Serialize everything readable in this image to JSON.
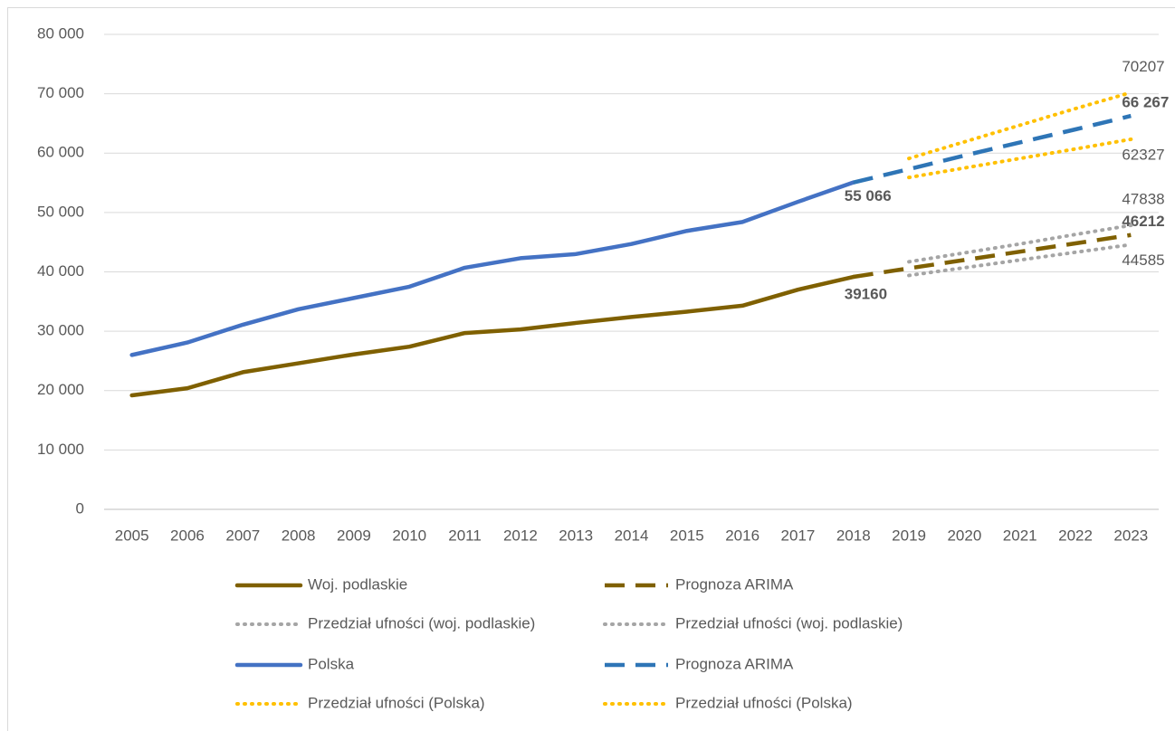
{
  "chart_data": {
    "type": "line",
    "categories": [
      "2005",
      "2006",
      "2007",
      "2008",
      "2009",
      "2010",
      "2011",
      "2012",
      "2013",
      "2014",
      "2015",
      "2016",
      "2017",
      "2018",
      "2019",
      "2020",
      "2021",
      "2022",
      "2023"
    ],
    "series": [
      {
        "name": "Woj. podlaskie",
        "color": "#7f6000",
        "style": "solid",
        "values": [
          19200,
          20400,
          23100,
          24600,
          26100,
          27400,
          29700,
          30300,
          31400,
          32400,
          33300,
          34300,
          37000,
          39160,
          null,
          null,
          null,
          null,
          null
        ],
        "value_labels": [
          null,
          null,
          null,
          null,
          null,
          null,
          null,
          null,
          null,
          null,
          null,
          null,
          null,
          "39160",
          null,
          null,
          null,
          null,
          null
        ]
      },
      {
        "name": "Prognoza ARIMA",
        "color": "#7f6000",
        "style": "dashed",
        "values": [
          null,
          null,
          null,
          null,
          null,
          null,
          null,
          null,
          null,
          null,
          null,
          null,
          null,
          39160,
          40600,
          42000,
          43400,
          44800,
          46212
        ],
        "value_labels": [
          null,
          null,
          null,
          null,
          null,
          null,
          null,
          null,
          null,
          null,
          null,
          null,
          null,
          null,
          null,
          null,
          null,
          null,
          "46212"
        ]
      },
      {
        "name": "Przedział ufności (woj. podlaskie)",
        "color": "#a5a5a5",
        "style": "dotted",
        "values": [
          null,
          null,
          null,
          null,
          null,
          null,
          null,
          null,
          null,
          null,
          null,
          null,
          null,
          null,
          41700,
          43200,
          44700,
          46300,
          47838
        ],
        "value_labels": [
          null,
          null,
          null,
          null,
          null,
          null,
          null,
          null,
          null,
          null,
          null,
          null,
          null,
          null,
          null,
          null,
          null,
          null,
          "47838"
        ]
      },
      {
        "name": "Przedział ufności (woj. podlaskie)",
        "color": "#a5a5a5",
        "style": "dotted",
        "values": [
          null,
          null,
          null,
          null,
          null,
          null,
          null,
          null,
          null,
          null,
          null,
          null,
          null,
          null,
          39400,
          40700,
          42000,
          43300,
          44585
        ],
        "value_labels": [
          null,
          null,
          null,
          null,
          null,
          null,
          null,
          null,
          null,
          null,
          null,
          null,
          null,
          null,
          null,
          null,
          null,
          null,
          "44585"
        ]
      },
      {
        "name": "Polska",
        "color": "#4472c4",
        "style": "solid",
        "values": [
          26000,
          28100,
          31100,
          33700,
          35600,
          37500,
          40700,
          42300,
          43000,
          44700,
          46900,
          48400,
          51800,
          55066,
          null,
          null,
          null,
          null,
          null
        ],
        "value_labels": [
          null,
          null,
          null,
          null,
          null,
          null,
          null,
          null,
          null,
          null,
          null,
          null,
          null,
          "55 066",
          null,
          null,
          null,
          null,
          null
        ]
      },
      {
        "name": "Prognoza ARIMA",
        "color": "#2e75b6",
        "style": "dashed",
        "values": [
          null,
          null,
          null,
          null,
          null,
          null,
          null,
          null,
          null,
          null,
          null,
          null,
          null,
          55066,
          57300,
          59600,
          61800,
          64000,
          66267
        ],
        "value_labels": [
          null,
          null,
          null,
          null,
          null,
          null,
          null,
          null,
          null,
          null,
          null,
          null,
          null,
          null,
          null,
          null,
          null,
          null,
          "66 267"
        ]
      },
      {
        "name": "Przedział ufności (Polska)",
        "color": "#ffc000",
        "style": "dotted",
        "values": [
          null,
          null,
          null,
          null,
          null,
          null,
          null,
          null,
          null,
          null,
          null,
          null,
          null,
          null,
          59100,
          61900,
          64700,
          67500,
          70207
        ],
        "value_labels": [
          null,
          null,
          null,
          null,
          null,
          null,
          null,
          null,
          null,
          null,
          null,
          null,
          null,
          null,
          null,
          null,
          null,
          null,
          "70207"
        ]
      },
      {
        "name": "Przedział ufności (Polska)",
        "color": "#ffc000",
        "style": "dotted",
        "values": [
          null,
          null,
          null,
          null,
          null,
          null,
          null,
          null,
          null,
          null,
          null,
          null,
          null,
          null,
          55900,
          57500,
          59100,
          60700,
          62327
        ],
        "value_labels": [
          null,
          null,
          null,
          null,
          null,
          null,
          null,
          null,
          null,
          null,
          null,
          null,
          null,
          null,
          null,
          null,
          null,
          null,
          "62327"
        ]
      }
    ],
    "ylim": [
      0,
      80000
    ],
    "yticks": [
      0,
      {
        "value": 10000,
        "label": "10 000"
      },
      {
        "value": 20000,
        "label": "20 000"
      },
      {
        "value": 30000,
        "label": "30 000"
      },
      {
        "value": 40000,
        "label": "40 000"
      },
      {
        "value": 50000,
        "label": "50 000"
      },
      {
        "value": 60000,
        "label": "60 000"
      },
      {
        "value": 70000,
        "label": "70 000"
      },
      {
        "value": 80000,
        "label": "80 000"
      }
    ],
    "grid": true,
    "legend": "bottom"
  }
}
